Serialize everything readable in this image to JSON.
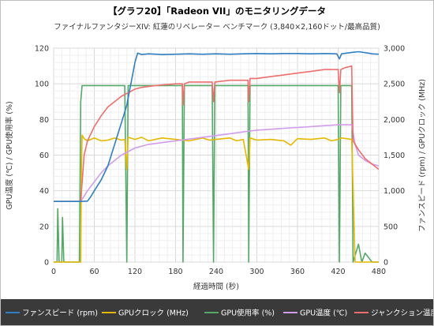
{
  "chart_data": {
    "type": "line",
    "title": "【グラフ20】「Radeon VII」のモニタリングデータ",
    "subtitle": "ファイナルファンタジーXIV: 紅蓮のリベレーター ベンチマーク (3,840×2,160ドット/最高品質)",
    "xlabel": "経過時間 (秒)",
    "ylabel_left": "GPU温度 (℃) / GPU使用率 (%)",
    "ylabel_right": "ファンスピード (rpm) / GPUクロック (MHz)",
    "xlim": [
      0,
      480
    ],
    "ylim_left": [
      0,
      120
    ],
    "ylim_right": [
      0,
      3000
    ],
    "x_ticks": [
      "0",
      "60",
      "120",
      "180",
      "240",
      "300",
      "360",
      "420",
      "480"
    ],
    "y_left_ticks": [
      "0",
      "20",
      "40",
      "60",
      "80",
      "100",
      "120"
    ],
    "y_right_ticks": [
      "0",
      "500",
      "1,000",
      "1,500",
      "2,000",
      "2,500",
      "3,000"
    ],
    "grid": true,
    "legend_position": "bottom",
    "series": [
      {
        "name": "ファンスピード (rpm)",
        "axis": "right",
        "color": "#2f7fc1",
        "points": [
          [
            0,
            850
          ],
          [
            20,
            850
          ],
          [
            40,
            850
          ],
          [
            50,
            855
          ],
          [
            55,
            920
          ],
          [
            60,
            1000
          ],
          [
            70,
            1150
          ],
          [
            80,
            1350
          ],
          [
            90,
            1650
          ],
          [
            100,
            1950
          ],
          [
            108,
            2200
          ],
          [
            112,
            2400
          ],
          [
            116,
            2600
          ],
          [
            120,
            2800
          ],
          [
            124,
            2930
          ],
          [
            130,
            2910
          ],
          [
            140,
            2920
          ],
          [
            160,
            2910
          ],
          [
            180,
            2915
          ],
          [
            200,
            2920
          ],
          [
            220,
            2915
          ],
          [
            240,
            2920
          ],
          [
            260,
            2915
          ],
          [
            280,
            2920
          ],
          [
            300,
            2925
          ],
          [
            320,
            2920
          ],
          [
            340,
            2925
          ],
          [
            360,
            2925
          ],
          [
            380,
            2920
          ],
          [
            400,
            2925
          ],
          [
            418,
            2920
          ],
          [
            422,
            2850
          ],
          [
            425,
            2920
          ],
          [
            440,
            2940
          ],
          [
            450,
            2950
          ],
          [
            465,
            2930
          ],
          [
            470,
            2920
          ],
          [
            480,
            2915
          ]
        ]
      },
      {
        "name": "GPUクロック (MHz)",
        "axis": "right",
        "color": "#e6b800",
        "points": [
          [
            0,
            0
          ],
          [
            40,
            0
          ],
          [
            41,
            1300
          ],
          [
            42,
            1780
          ],
          [
            45,
            1730
          ],
          [
            50,
            1700
          ],
          [
            60,
            1740
          ],
          [
            70,
            1700
          ],
          [
            80,
            1710
          ],
          [
            90,
            1740
          ],
          [
            100,
            1710
          ],
          [
            105,
            1720
          ],
          [
            108,
            1300
          ],
          [
            110,
            1750
          ],
          [
            120,
            1720
          ],
          [
            130,
            1750
          ],
          [
            140,
            1700
          ],
          [
            160,
            1740
          ],
          [
            180,
            1720
          ],
          [
            200,
            1700
          ],
          [
            220,
            1740
          ],
          [
            230,
            1710
          ],
          [
            240,
            1720
          ],
          [
            260,
            1740
          ],
          [
            270,
            1700
          ],
          [
            280,
            1720
          ],
          [
            288,
            1300
          ],
          [
            290,
            1740
          ],
          [
            300,
            1710
          ],
          [
            320,
            1720
          ],
          [
            340,
            1700
          ],
          [
            350,
            1640
          ],
          [
            360,
            1730
          ],
          [
            380,
            1720
          ],
          [
            400,
            1740
          ],
          [
            410,
            1700
          ],
          [
            420,
            1720
          ],
          [
            425,
            1740
          ],
          [
            440,
            1720
          ],
          [
            445,
            0
          ],
          [
            480,
            0
          ]
        ]
      },
      {
        "name": "GPU使用率 (%)",
        "axis": "left",
        "color": "#55a868",
        "points": [
          [
            0,
            0
          ],
          [
            5,
            0
          ],
          [
            6,
            30
          ],
          [
            8,
            0
          ],
          [
            12,
            0
          ],
          [
            13,
            25
          ],
          [
            15,
            0
          ],
          [
            38,
            0
          ],
          [
            40,
            90
          ],
          [
            42,
            99
          ],
          [
            50,
            99
          ],
          [
            60,
            99
          ],
          [
            70,
            99
          ],
          [
            80,
            99
          ],
          [
            90,
            99
          ],
          [
            100,
            99
          ],
          [
            105,
            99
          ],
          [
            108,
            0
          ],
          [
            110,
            99
          ],
          [
            120,
            99
          ],
          [
            140,
            99
          ],
          [
            160,
            99
          ],
          [
            180,
            99
          ],
          [
            190,
            99
          ],
          [
            191,
            0
          ],
          [
            193,
            99
          ],
          [
            200,
            99
          ],
          [
            220,
            99
          ],
          [
            234,
            99
          ],
          [
            236,
            0
          ],
          [
            238,
            99
          ],
          [
            260,
            99
          ],
          [
            280,
            99
          ],
          [
            287,
            99
          ],
          [
            288,
            0
          ],
          [
            290,
            99
          ],
          [
            300,
            99
          ],
          [
            320,
            99
          ],
          [
            340,
            99
          ],
          [
            360,
            99
          ],
          [
            380,
            99
          ],
          [
            400,
            99
          ],
          [
            415,
            99
          ],
          [
            420,
            99
          ],
          [
            422,
            0
          ],
          [
            424,
            99
          ],
          [
            430,
            99
          ],
          [
            440,
            99
          ],
          [
            442,
            0
          ],
          [
            450,
            10
          ],
          [
            455,
            0
          ],
          [
            460,
            5
          ],
          [
            470,
            0
          ],
          [
            480,
            0
          ]
        ]
      },
      {
        "name": "GPU温度 (℃)",
        "axis": "left",
        "color": "#d29cec",
        "points": [
          [
            0,
            34
          ],
          [
            40,
            34
          ],
          [
            45,
            37
          ],
          [
            50,
            40
          ],
          [
            60,
            45
          ],
          [
            70,
            50
          ],
          [
            80,
            54
          ],
          [
            90,
            57
          ],
          [
            100,
            60
          ],
          [
            110,
            62
          ],
          [
            120,
            64
          ],
          [
            140,
            66
          ],
          [
            160,
            67
          ],
          [
            180,
            68
          ],
          [
            200,
            69
          ],
          [
            220,
            70
          ],
          [
            240,
            71
          ],
          [
            260,
            72
          ],
          [
            280,
            73
          ],
          [
            300,
            74
          ],
          [
            320,
            74.5
          ],
          [
            340,
            75
          ],
          [
            360,
            75.5
          ],
          [
            380,
            76
          ],
          [
            400,
            76.5
          ],
          [
            420,
            77
          ],
          [
            440,
            77
          ],
          [
            445,
            66
          ],
          [
            450,
            60
          ],
          [
            460,
            57
          ],
          [
            470,
            55
          ],
          [
            480,
            54
          ]
        ]
      },
      {
        "name": "ジャンクション温度",
        "axis": "left",
        "color": "#ee6e6e",
        "points": [
          [
            0,
            34
          ],
          [
            40,
            34
          ],
          [
            45,
            60
          ],
          [
            50,
            68
          ],
          [
            60,
            76
          ],
          [
            70,
            82
          ],
          [
            80,
            87
          ],
          [
            90,
            90
          ],
          [
            100,
            93
          ],
          [
            110,
            95
          ],
          [
            120,
            97
          ],
          [
            130,
            98
          ],
          [
            150,
            99
          ],
          [
            180,
            100
          ],
          [
            190,
            100
          ],
          [
            191,
            88
          ],
          [
            193,
            100
          ],
          [
            200,
            101
          ],
          [
            220,
            101
          ],
          [
            234,
            101
          ],
          [
            236,
            90
          ],
          [
            238,
            101
          ],
          [
            260,
            102
          ],
          [
            280,
            102
          ],
          [
            287,
            102
          ],
          [
            288,
            90
          ],
          [
            290,
            103
          ],
          [
            300,
            103
          ],
          [
            320,
            104
          ],
          [
            340,
            105
          ],
          [
            360,
            106
          ],
          [
            380,
            107
          ],
          [
            400,
            108
          ],
          [
            415,
            108
          ],
          [
            420,
            108
          ],
          [
            422,
            95
          ],
          [
            424,
            108
          ],
          [
            430,
            109
          ],
          [
            440,
            110
          ],
          [
            442,
            68
          ],
          [
            450,
            63
          ],
          [
            460,
            58
          ],
          [
            470,
            55
          ],
          [
            480,
            52
          ]
        ]
      }
    ]
  }
}
